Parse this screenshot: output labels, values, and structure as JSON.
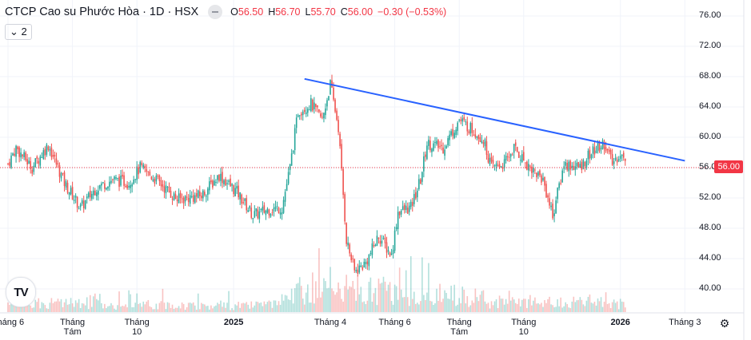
{
  "header": {
    "title": "CTCP Cao su Phước Hòa · 1D · HSX",
    "open_label": "O",
    "open": "56.50",
    "high_label": "H",
    "high": "56.70",
    "low_label": "L",
    "low": "55.70",
    "close_label": "C",
    "close": "56.00",
    "change": "−0.30 (−0.53%)",
    "collapse_label": "2",
    "collapse_icon": "chevron-down-icon"
  },
  "colors": {
    "up": "#26a69a",
    "down": "#ef5350",
    "trendline": "#2962ff",
    "last_price": "#f23645"
  },
  "chart_data": {
    "type": "candlestick",
    "ylim": [
      38,
      78
    ],
    "y_ticks": [
      "76.00",
      "72.00",
      "68.00",
      "64.00",
      "60.00",
      "56.00",
      "52.00",
      "48.00",
      "44.00",
      "40.00"
    ],
    "y_tick_values": [
      76,
      72,
      68,
      64,
      60,
      56,
      52,
      48,
      44,
      40
    ],
    "x_ticks": [
      "Tháng 6",
      "Tháng Tám",
      "Tháng 10",
      "2025",
      "Tháng 4",
      "Tháng 6",
      "Tháng Tám",
      "Tháng 10",
      "2026",
      "Tháng 3"
    ],
    "x_tick_months": [
      0,
      2,
      4,
      7,
      10,
      12,
      14,
      16,
      19,
      21
    ],
    "last_price": 56.0,
    "last_price_label": "56.00",
    "close_path_months_price": [
      [
        0.0,
        56.5
      ],
      [
        0.25,
        58.6
      ],
      [
        0.75,
        56
      ],
      [
        1.25,
        59
      ],
      [
        1.75,
        54
      ],
      [
        2.25,
        50.7
      ],
      [
        2.75,
        53.4
      ],
      [
        3.25,
        54.4
      ],
      [
        3.75,
        54
      ],
      [
        4.1,
        56
      ],
      [
        4.6,
        54.4
      ],
      [
        5.25,
        51.8
      ],
      [
        6.0,
        52.3
      ],
      [
        6.55,
        55
      ],
      [
        7.1,
        52.8
      ],
      [
        7.6,
        49.7
      ],
      [
        8.1,
        50.5
      ],
      [
        8.5,
        50.7
      ],
      [
        8.75,
        56
      ],
      [
        9.0,
        63.4
      ],
      [
        9.4,
        64.4
      ],
      [
        9.75,
        62.3
      ],
      [
        10.0,
        67
      ],
      [
        10.25,
        61.3
      ],
      [
        10.5,
        46.5
      ],
      [
        10.75,
        42.3
      ],
      [
        11.1,
        43.4
      ],
      [
        11.5,
        47
      ],
      [
        11.9,
        44.4
      ],
      [
        12.1,
        50.2
      ],
      [
        12.5,
        50.7
      ],
      [
        12.8,
        54.4
      ],
      [
        13.0,
        59.2
      ],
      [
        13.5,
        58.6
      ],
      [
        14.0,
        62.3
      ],
      [
        14.5,
        60.7
      ],
      [
        14.75,
        59.7
      ],
      [
        15.0,
        56
      ],
      [
        15.4,
        56.5
      ],
      [
        15.7,
        58.6
      ],
      [
        16.1,
        56.5
      ],
      [
        16.6,
        54.4
      ],
      [
        16.9,
        49.7
      ],
      [
        17.25,
        56.5
      ],
      [
        17.75,
        56
      ],
      [
        18.0,
        57.6
      ],
      [
        18.5,
        59.2
      ],
      [
        18.75,
        56.5
      ],
      [
        19.0,
        58
      ],
      [
        19.2,
        56
      ]
    ],
    "volume_intensity_months": [
      [
        0,
        1.0
      ],
      [
        2,
        0.8
      ],
      [
        4,
        0.7
      ],
      [
        7,
        0.6
      ],
      [
        8.5,
        0.7
      ],
      [
        9,
        2.2
      ],
      [
        10,
        2.6
      ],
      [
        11,
        2.0
      ],
      [
        12,
        1.9
      ],
      [
        13,
        1.6
      ],
      [
        14,
        1.8
      ],
      [
        15,
        1.0
      ],
      [
        16,
        0.8
      ],
      [
        17,
        0.9
      ],
      [
        18,
        0.9
      ],
      [
        19.2,
        0.8
      ]
    ],
    "trendline": {
      "start": [
        9.2,
        67.7
      ],
      "end": [
        21.0,
        56.9
      ]
    }
  }
}
